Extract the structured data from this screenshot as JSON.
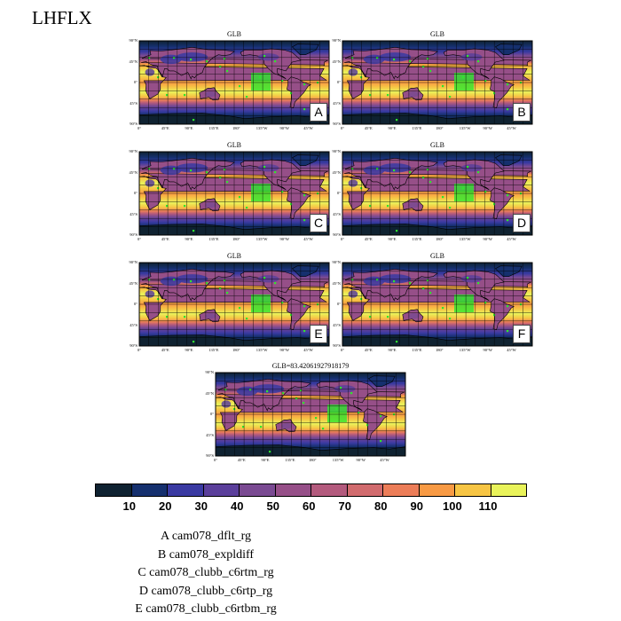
{
  "title": "LHFLX",
  "panels": [
    {
      "id": "A",
      "title": "GLB",
      "letter": "A"
    },
    {
      "id": "B",
      "title": "GLB",
      "letter": "B"
    },
    {
      "id": "C",
      "title": "GLB",
      "letter": "C"
    },
    {
      "id": "D",
      "title": "GLB",
      "letter": "D"
    },
    {
      "id": "E",
      "title": "GLB",
      "letter": "E"
    },
    {
      "id": "F",
      "title": "GLB",
      "letter": "F"
    },
    {
      "id": "G",
      "title": "GLB=83.42061927918179",
      "letter": ""
    }
  ],
  "lat_labels": [
    "90°N",
    "45°N",
    "0°",
    "45°S",
    "90°S"
  ],
  "lon_labels": [
    "0°",
    "45°E",
    "90°E",
    "135°E",
    "180°",
    "135°W",
    "90°W",
    "45°W"
  ],
  "colorbar": {
    "colors": [
      "#0f2231",
      "#15306e",
      "#3a3aa2",
      "#5b3f9b",
      "#7a4a92",
      "#964f88",
      "#b35a7d",
      "#d16b6e",
      "#ec7d58",
      "#f89a44",
      "#f7c544",
      "#e9f35a"
    ],
    "labels": [
      "10",
      "20",
      "30",
      "40",
      "50",
      "60",
      "70",
      "80",
      "90",
      "100",
      "110"
    ]
  },
  "legend": [
    "A  cam078_dflt_rg",
    "B  cam078_expldiff",
    "C  cam078_clubb_c6rtm_rg",
    "D  cam078_clubb_c6rtp_rg",
    "E  cam078_clubb_c6rtbm_rg"
  ]
}
